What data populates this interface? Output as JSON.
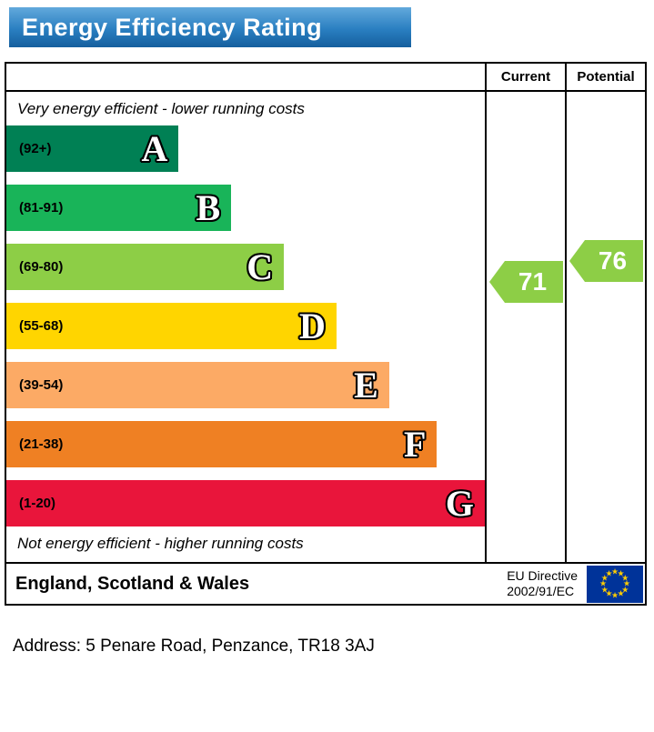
{
  "title": "Energy Efficiency Rating",
  "table": {
    "current_header": "Current",
    "potential_header": "Potential",
    "top_note": "Very energy efficient - lower running costs",
    "bottom_note": "Not energy efficient - higher running costs"
  },
  "footer": {
    "region": "England, Scotland & Wales",
    "directive_line1": "EU Directive",
    "directive_line2": "2002/91/EC"
  },
  "address": "Address: 5 Penare Road, Penzance, TR18 3AJ",
  "colors": {
    "header_blue": "#2a7fc1",
    "rating_arrow_green": "#8dce46",
    "eu_flag_blue": "#003399",
    "eu_star_yellow": "#ffcc00"
  },
  "chart_data": {
    "type": "bar",
    "title": "Energy Efficiency Rating",
    "scale": [
      1,
      100
    ],
    "bands": [
      {
        "letter": "A",
        "range_label": "(92+)",
        "range": [
          92,
          100
        ],
        "color": "#008054",
        "width_pct": 36
      },
      {
        "letter": "B",
        "range_label": "(81-91)",
        "range": [
          81,
          91
        ],
        "color": "#19b459",
        "width_pct": 47
      },
      {
        "letter": "C",
        "range_label": "(69-80)",
        "range": [
          69,
          80
        ],
        "color": "#8dce46",
        "width_pct": 58
      },
      {
        "letter": "D",
        "range_label": "(55-68)",
        "range": [
          55,
          68
        ],
        "color": "#ffd500",
        "width_pct": 69
      },
      {
        "letter": "E",
        "range_label": "(39-54)",
        "range": [
          39,
          54
        ],
        "color": "#fcaa65",
        "width_pct": 80
      },
      {
        "letter": "F",
        "range_label": "(21-38)",
        "range": [
          21,
          38
        ],
        "color": "#ef8023",
        "width_pct": 90
      },
      {
        "letter": "G",
        "range_label": "(1-20)",
        "range": [
          1,
          20
        ],
        "color": "#e9153b",
        "width_pct": 100
      }
    ],
    "markers": {
      "current": {
        "label": "Current",
        "value": 71,
        "band": "C",
        "color": "#8dce46"
      },
      "potential": {
        "label": "Potential",
        "value": 76,
        "band": "C",
        "color": "#8dce46"
      }
    }
  }
}
